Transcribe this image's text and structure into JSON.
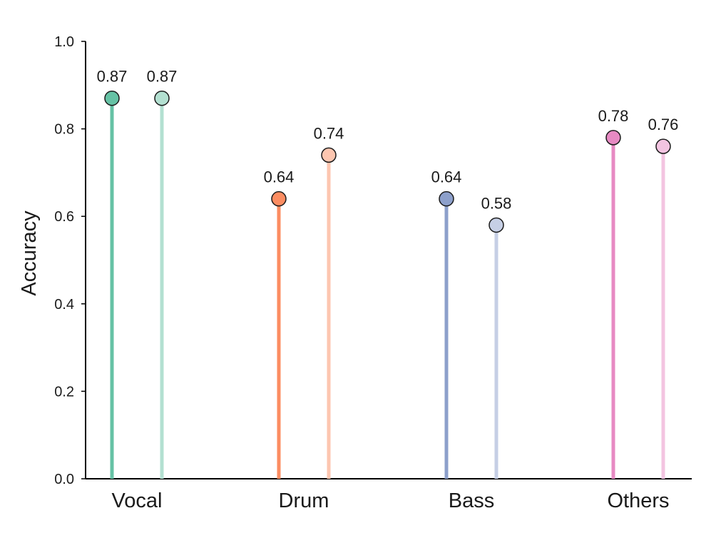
{
  "chart_data": {
    "type": "lollipop",
    "title": "",
    "xlabel": "",
    "ylabel": "Accuracy",
    "ylim": [
      0,
      1.0
    ],
    "yticks": [
      0.0,
      0.2,
      0.4,
      0.6,
      0.8,
      1.0
    ],
    "ytick_labels": [
      "0.0",
      "0.2",
      "0.4",
      "0.6",
      "0.8",
      "1.0"
    ],
    "grid": false,
    "legend": "none",
    "categories": [
      "Vocal",
      "Drum",
      "Bass",
      "Others"
    ],
    "groups": [
      {
        "category": "Vocal",
        "points": [
          {
            "value": 0.87,
            "label": "0.87",
            "color": "#66c2a5"
          },
          {
            "value": 0.87,
            "label": "0.87",
            "color": "#b3e0d1"
          }
        ]
      },
      {
        "category": "Drum",
        "points": [
          {
            "value": 0.64,
            "label": "0.64",
            "color": "#fc8d62"
          },
          {
            "value": 0.74,
            "label": "0.74",
            "color": "#fdc6b0"
          }
        ]
      },
      {
        "category": "Bass",
        "points": [
          {
            "value": 0.64,
            "label": "0.64",
            "color": "#8da0cb"
          },
          {
            "value": 0.58,
            "label": "0.58",
            "color": "#c6cfe5"
          }
        ]
      },
      {
        "category": "Others",
        "points": [
          {
            "value": 0.78,
            "label": "0.78",
            "color": "#e78ac3"
          },
          {
            "value": 0.76,
            "label": "0.76",
            "color": "#f3c4e1"
          }
        ]
      }
    ]
  }
}
